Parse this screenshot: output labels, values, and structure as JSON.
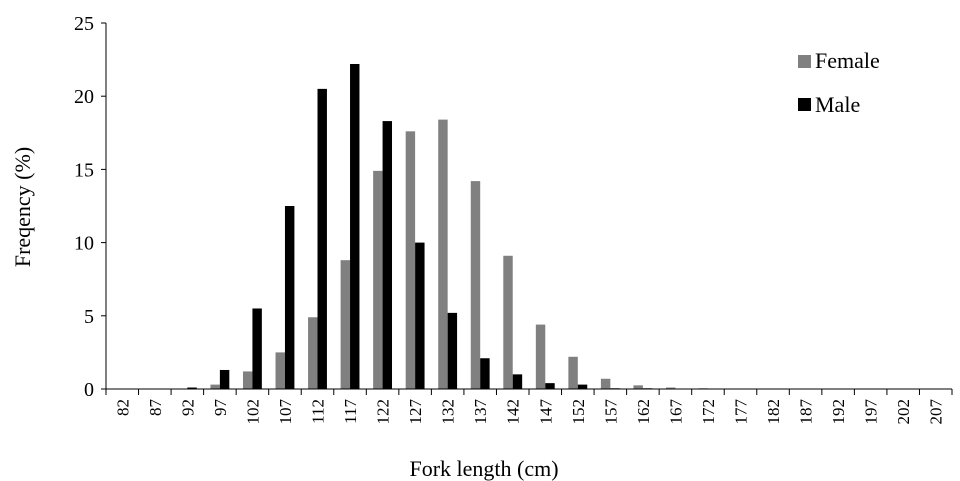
{
  "chart_data": {
    "type": "bar",
    "title": "",
    "xlabel": "Fork length (cm)",
    "ylabel": "Freqency (%)",
    "ylim": [
      0,
      25
    ],
    "yticks": [
      0,
      5,
      10,
      15,
      20,
      25
    ],
    "grid": false,
    "legend_position": "top-right",
    "categories": [
      "82",
      "87",
      "92",
      "97",
      "102",
      "107",
      "112",
      "117",
      "122",
      "127",
      "132",
      "137",
      "142",
      "147",
      "152",
      "157",
      "162",
      "167",
      "172",
      "177",
      "182",
      "187",
      "192",
      "197",
      "202",
      "207"
    ],
    "series": [
      {
        "name": "Female",
        "color": "#808080",
        "values": [
          0,
          0,
          0,
          0.3,
          1.2,
          2.5,
          4.9,
          8.8,
          14.9,
          17.6,
          18.4,
          14.2,
          9.1,
          4.4,
          2.2,
          0.7,
          0.25,
          0.1,
          0.05,
          0,
          0,
          0,
          0,
          0,
          0,
          0
        ]
      },
      {
        "name": "Male",
        "color": "#000000",
        "values": [
          0,
          0,
          0.1,
          1.3,
          5.5,
          12.5,
          20.5,
          22.2,
          18.3,
          10.0,
          5.2,
          2.1,
          1.0,
          0.4,
          0.3,
          0.05,
          0.05,
          0,
          0,
          0,
          0,
          0,
          0,
          0,
          0,
          0
        ]
      }
    ]
  }
}
